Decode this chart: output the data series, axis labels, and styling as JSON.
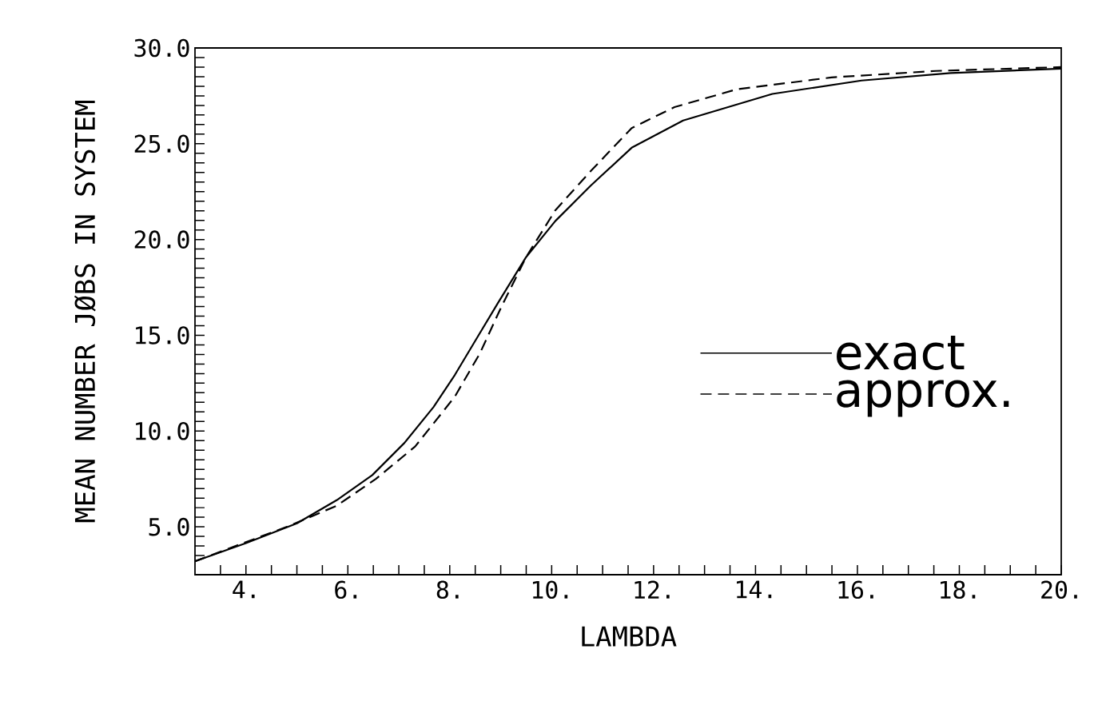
{
  "chart_data": {
    "type": "line",
    "xlabel": "LAMBDA",
    "ylabel": "MEAN NUMBER JØBS IN SYSTEM",
    "xlim": [
      3,
      20
    ],
    "ylim": [
      2.5,
      30
    ],
    "xticks": [
      {
        "value": 3.5,
        "label": null
      },
      {
        "value": 4.5,
        "label": null
      },
      {
        "value": 5,
        "label": null
      },
      {
        "value": 5.5,
        "label": null
      },
      {
        "value": 6.5,
        "label": null
      },
      {
        "value": 7,
        "label": null
      },
      {
        "value": 7.5,
        "label": null
      },
      {
        "value": 8.5,
        "label": null
      },
      {
        "value": 9,
        "label": null
      },
      {
        "value": 9.5,
        "label": null
      },
      {
        "value": 10.5,
        "label": null
      },
      {
        "value": 11,
        "label": null
      },
      {
        "value": 11.5,
        "label": null
      },
      {
        "value": 12.5,
        "label": null
      },
      {
        "value": 13,
        "label": null
      },
      {
        "value": 13.5,
        "label": null
      },
      {
        "value": 14.5,
        "label": null
      },
      {
        "value": 15,
        "label": null
      },
      {
        "value": 15.5,
        "label": null
      },
      {
        "value": 16.5,
        "label": null
      },
      {
        "value": 17,
        "label": null
      },
      {
        "value": 17.5,
        "label": null
      },
      {
        "value": 18.5,
        "label": null
      },
      {
        "value": 19,
        "label": null
      },
      {
        "value": 19.5,
        "label": null
      },
      {
        "value": 4,
        "label": "4."
      },
      {
        "value": 6,
        "label": "6."
      },
      {
        "value": 8,
        "label": "8."
      },
      {
        "value": 10,
        "label": "10."
      },
      {
        "value": 12,
        "label": "12."
      },
      {
        "value": 14,
        "label": "14."
      },
      {
        "value": 16,
        "label": "16."
      },
      {
        "value": 18,
        "label": "18."
      },
      {
        "value": 20,
        "label": "20."
      }
    ],
    "yticks": [
      {
        "value": 3.5,
        "label": null
      },
      {
        "value": 4,
        "label": null
      },
      {
        "value": 4.5,
        "label": null
      },
      {
        "value": 5.5,
        "label": null
      },
      {
        "value": 6,
        "label": null
      },
      {
        "value": 6.5,
        "label": null
      },
      {
        "value": 7,
        "label": null
      },
      {
        "value": 7.5,
        "label": null
      },
      {
        "value": 8,
        "label": null
      },
      {
        "value": 8.5,
        "label": null
      },
      {
        "value": 9,
        "label": null
      },
      {
        "value": 9.5,
        "label": null
      },
      {
        "value": 10.5,
        "label": null
      },
      {
        "value": 11,
        "label": null
      },
      {
        "value": 11.5,
        "label": null
      },
      {
        "value": 12,
        "label": null
      },
      {
        "value": 12.5,
        "label": null
      },
      {
        "value": 13,
        "label": null
      },
      {
        "value": 13.5,
        "label": null
      },
      {
        "value": 14,
        "label": null
      },
      {
        "value": 14.5,
        "label": null
      },
      {
        "value": 15.5,
        "label": null
      },
      {
        "value": 16,
        "label": null
      },
      {
        "value": 16.5,
        "label": null
      },
      {
        "value": 17,
        "label": null
      },
      {
        "value": 17.5,
        "label": null
      },
      {
        "value": 18,
        "label": null
      },
      {
        "value": 18.5,
        "label": null
      },
      {
        "value": 19,
        "label": null
      },
      {
        "value": 19.5,
        "label": null
      },
      {
        "value": 20.5,
        "label": null
      },
      {
        "value": 21,
        "label": null
      },
      {
        "value": 21.5,
        "label": null
      },
      {
        "value": 22,
        "label": null
      },
      {
        "value": 22.5,
        "label": null
      },
      {
        "value": 23,
        "label": null
      },
      {
        "value": 23.5,
        "label": null
      },
      {
        "value": 24,
        "label": null
      },
      {
        "value": 24.5,
        "label": null
      },
      {
        "value": 25.5,
        "label": null
      },
      {
        "value": 26,
        "label": null
      },
      {
        "value": 26.5,
        "label": null
      },
      {
        "value": 27,
        "label": null
      },
      {
        "value": 27.5,
        "label": null
      },
      {
        "value": 28,
        "label": null
      },
      {
        "value": 28.5,
        "label": null
      },
      {
        "value": 29,
        "label": null
      },
      {
        "value": 29.5,
        "label": null
      },
      {
        "value": 5,
        "label": "5.0"
      },
      {
        "value": 10,
        "label": "10.0"
      },
      {
        "value": 15,
        "label": "15.0"
      },
      {
        "value": 20,
        "label": "20.0"
      },
      {
        "value": 25,
        "label": "25.0"
      },
      {
        "value": 30,
        "label": "30.0"
      }
    ],
    "legend": "right",
    "grid": false,
    "marker": "none",
    "series": [
      {
        "name": "exact",
        "color": "#000000",
        "line_style": "solid",
        "x": [
          3.0,
          4.0,
          5.0,
          5.78,
          6.48,
          7.11,
          7.68,
          8.1,
          8.52,
          8.94,
          9.5,
          10.07,
          10.77,
          11.57,
          12.58,
          14.33,
          16.08,
          17.83,
          20.0
        ],
        "values": [
          3.2,
          4.15,
          5.18,
          6.39,
          7.7,
          9.38,
          11.25,
          12.93,
          14.8,
          16.66,
          19.09,
          20.96,
          22.82,
          24.79,
          26.21,
          27.6,
          28.3,
          28.69,
          28.92
        ]
      },
      {
        "name": "approx.",
        "color": "#000000",
        "line_style": "dashed",
        "x": [
          3.0,
          4.85,
          5.78,
          6.55,
          7.32,
          8.1,
          8.59,
          9.01,
          9.5,
          10.07,
          10.77,
          11.57,
          12.41,
          13.63,
          15.49,
          17.54,
          20.0
        ],
        "values": [
          3.2,
          5.05,
          6.1,
          7.5,
          9.19,
          11.8,
          14.05,
          16.47,
          19.09,
          21.52,
          23.58,
          25.82,
          26.91,
          27.84,
          28.46,
          28.8,
          29.0
        ]
      }
    ]
  }
}
